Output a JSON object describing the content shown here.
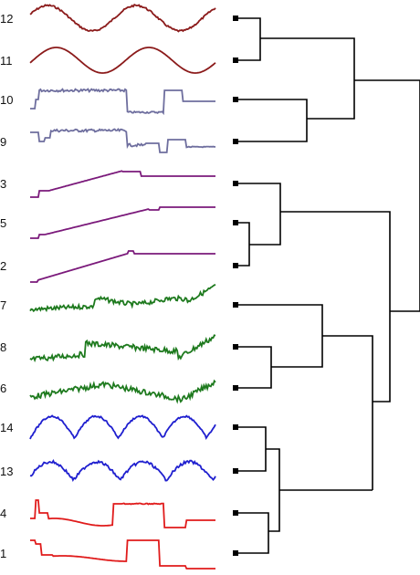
{
  "rows": [
    {
      "label": "12",
      "color": "#8b1a1a",
      "shape": "sine2"
    },
    {
      "label": "11",
      "color": "#8b1a1a",
      "shape": "sine2b"
    },
    {
      "label": "10",
      "color": "#6e6e9e",
      "shape": "stepA"
    },
    {
      "label": "9",
      "color": "#6e6e9e",
      "shape": "stepB"
    },
    {
      "label": "3",
      "color": "#7b1a7b",
      "shape": "rampA"
    },
    {
      "label": "5",
      "color": "#7b1a7b",
      "shape": "rampB"
    },
    {
      "label": "2",
      "color": "#7b1a7b",
      "shape": "rampC"
    },
    {
      "label": "7",
      "color": "#1e7a1e",
      "shape": "noisyA"
    },
    {
      "label": "8",
      "color": "#1e7a1e",
      "shape": "noisyB"
    },
    {
      "label": "6",
      "color": "#1e7a1e",
      "shape": "noisyC"
    },
    {
      "label": "14",
      "color": "#1f1fcf",
      "shape": "bumps4"
    },
    {
      "label": "13",
      "color": "#1f1fcf",
      "shape": "bumps4b"
    },
    {
      "label": "4",
      "color": "#e01b1b",
      "shape": "redA"
    },
    {
      "label": "1",
      "color": "#e01b1b",
      "shape": "redB"
    }
  ],
  "dendrogram": {
    "merges": [
      {
        "a": "12",
        "b": "11"
      },
      {
        "a": "10",
        "b": "9"
      },
      {
        "a": "5",
        "b": "2"
      },
      {
        "a": "8",
        "b": "6"
      },
      {
        "a": "14",
        "b": "13"
      },
      {
        "a": "4",
        "b": "1"
      }
    ]
  },
  "colors": {
    "tree": "#000000",
    "leaf_marker": "#000000"
  }
}
